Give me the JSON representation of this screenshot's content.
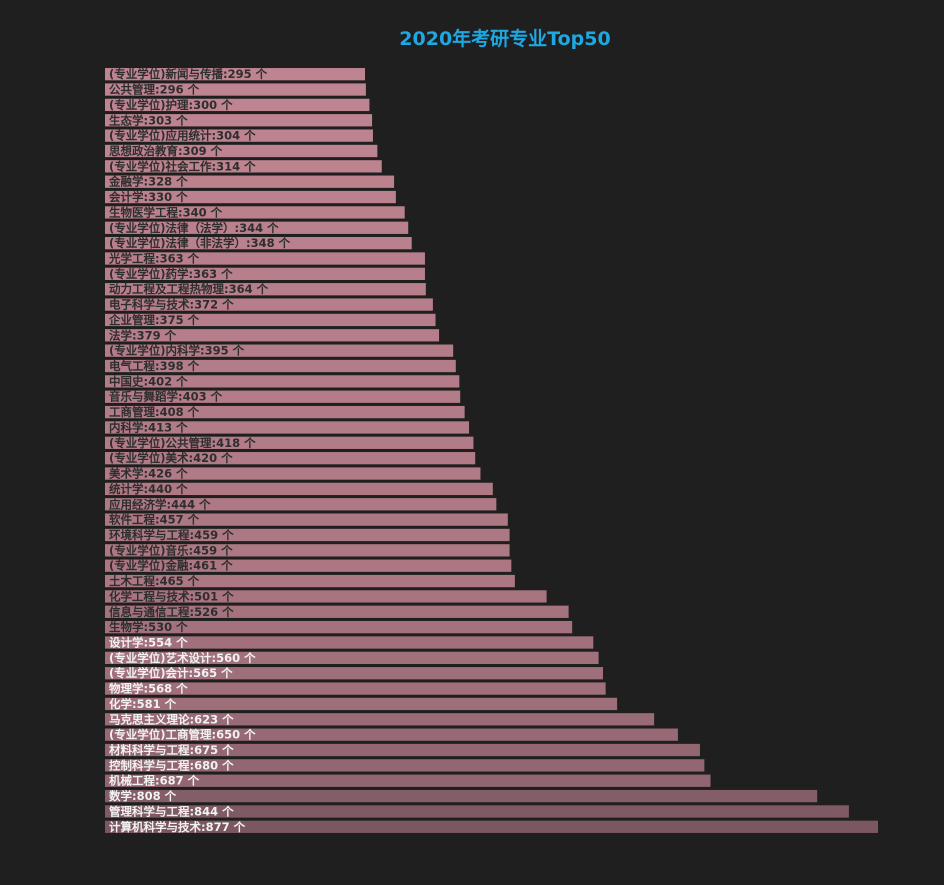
{
  "chart_data": {
    "type": "bar",
    "orientation": "horizontal",
    "title": "2020年考研专业Top50",
    "unit": "个",
    "grid": false,
    "legend": "none",
    "xlim": [
      0,
      877
    ],
    "categories": [
      "(专业学位)新闻与传播",
      "公共管理",
      "(专业学位)护理",
      "生态学",
      "(专业学位)应用统计",
      "思想政治教育",
      "(专业学位)社会工作",
      "金融学",
      "会计学",
      "生物医学工程",
      "(专业学位)法律（法学）",
      "(专业学位)法律（非法学）",
      "光学工程",
      "(专业学位)药学",
      "动力工程及工程热物理",
      "电子科学与技术",
      "企业管理",
      "法学",
      "(专业学位)内科学",
      "电气工程",
      "中国史",
      "音乐与舞蹈学",
      "工商管理",
      "内科学",
      "(专业学位)公共管理",
      "(专业学位)美术",
      "美术学",
      "统计学",
      "应用经济学",
      "软件工程",
      "环境科学与工程",
      "(专业学位)音乐",
      "(专业学位)金融",
      "土木工程",
      "化学工程与技术",
      "信息与通信工程",
      "生物学",
      "设计学",
      "(专业学位)艺术设计",
      "(专业学位)会计",
      "物理学",
      "化学",
      "马克思主义理论",
      "(专业学位)工商管理",
      "材料科学与工程",
      "控制科学与工程",
      "机械工程",
      "数学",
      "管理科学与工程",
      "计算机科学与技术"
    ],
    "values": [
      295,
      296,
      300,
      303,
      304,
      309,
      314,
      328,
      330,
      340,
      344,
      348,
      363,
      363,
      364,
      372,
      375,
      379,
      395,
      398,
      402,
      403,
      408,
      413,
      418,
      420,
      426,
      440,
      444,
      457,
      459,
      459,
      461,
      465,
      501,
      526,
      530,
      554,
      560,
      565,
      568,
      581,
      623,
      650,
      675,
      680,
      687,
      808,
      844,
      877
    ],
    "bar_color_min": "#bf8491",
    "bar_color_max": "#7b5861",
    "label_color_dark": "#2e2e2e",
    "label_color_light": "#f2f2f2"
  }
}
